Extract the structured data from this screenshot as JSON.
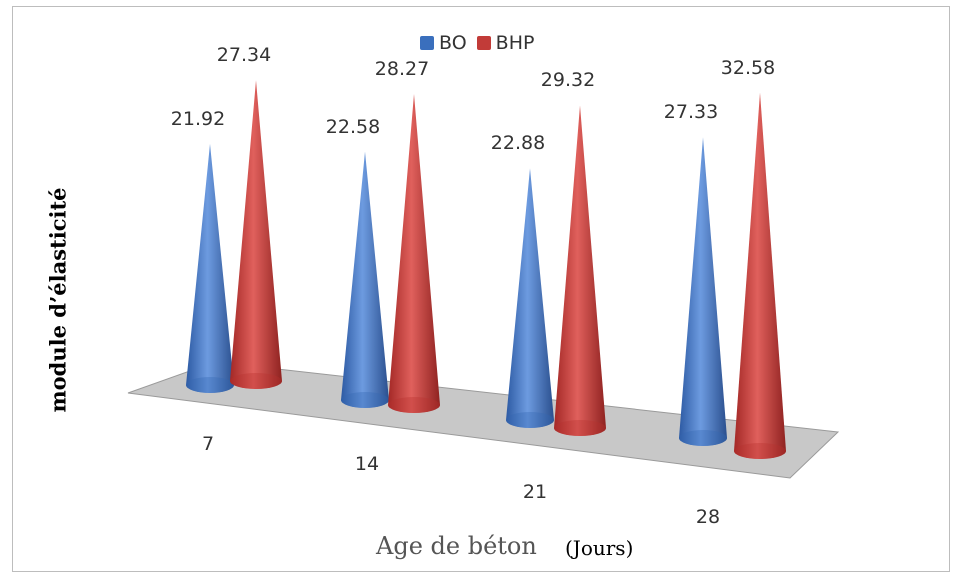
{
  "chart_data": {
    "type": "bar",
    "shape": "cone-3d",
    "categories": [
      "7",
      "14",
      "21",
      "28"
    ],
    "series": [
      {
        "name": "BO",
        "color": "#3a6fbd",
        "values": [
          21.92,
          22.58,
          22.88,
          27.33
        ]
      },
      {
        "name": "BHP",
        "color": "#c23b38",
        "values": [
          27.34,
          28.27,
          29.32,
          32.58
        ]
      }
    ],
    "ylabel": "module d’élasticité",
    "xlabel": "Age de béton",
    "xlabel_unit": "(Jours)",
    "legend_position": "top-center",
    "grid": false
  }
}
